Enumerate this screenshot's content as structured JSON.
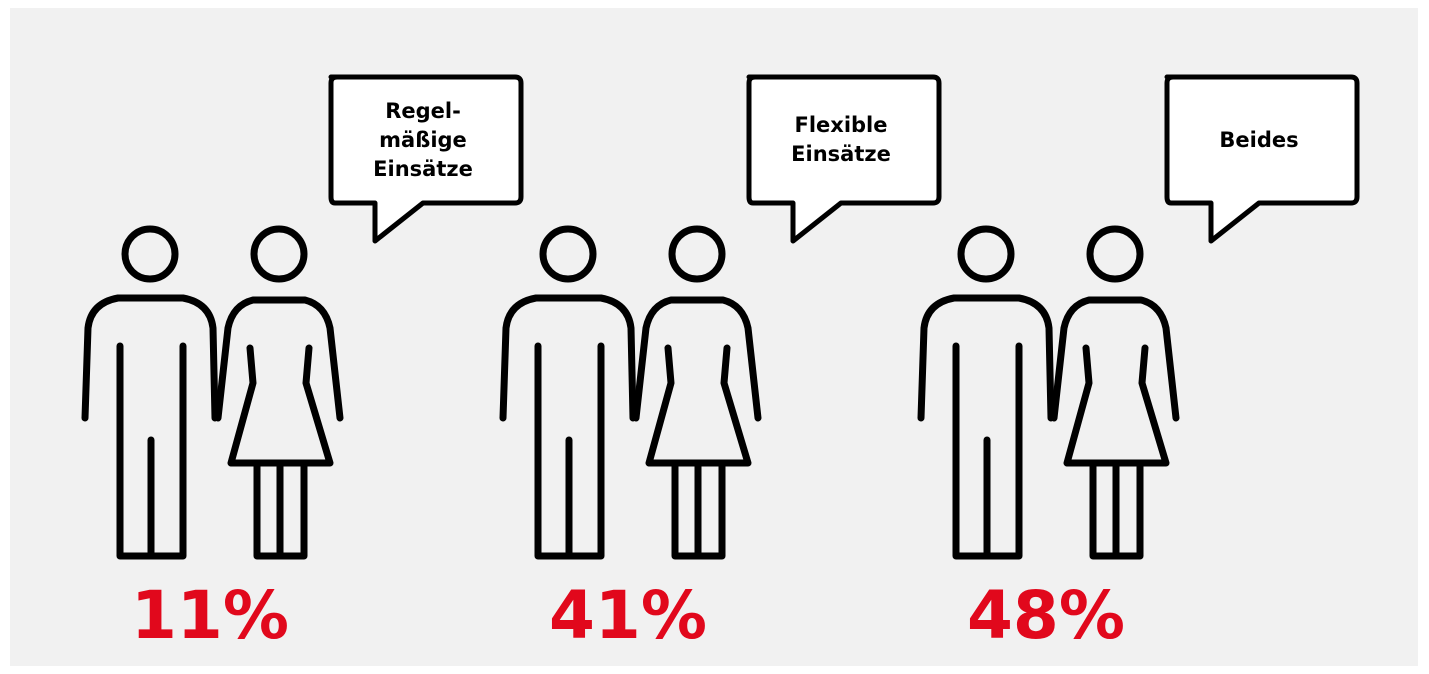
{
  "panels": [
    {
      "bubble": "Regel-\nmäßige\nEinsätze",
      "percent": "11%"
    },
    {
      "bubble": "Flexible\nEinsätze",
      "percent": "41%"
    },
    {
      "bubble": "Beides",
      "percent": "48%"
    }
  ],
  "colors": {
    "background": "#f1f1f1",
    "percent": "#e1081c",
    "stroke": "#000000"
  },
  "icons": [
    "man-icon",
    "woman-icon",
    "speech-bubble-icon"
  ]
}
